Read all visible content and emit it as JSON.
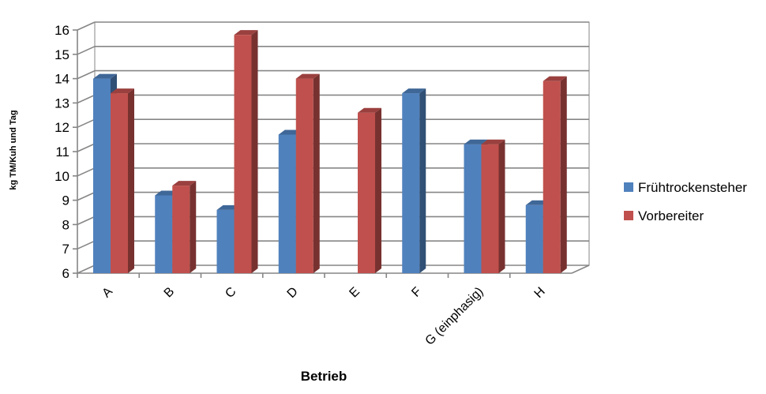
{
  "chart_data": {
    "type": "bar",
    "variant": "3d-clustered-column",
    "categories": [
      "A",
      "B",
      "C",
      "D",
      "E",
      "F",
      "G (einphasig)",
      "H"
    ],
    "series": [
      {
        "name": "Frühtrockensteher",
        "color": "#4F81BD",
        "values": [
          14.0,
          9.2,
          8.6,
          11.7,
          null,
          13.4,
          11.3,
          8.8
        ]
      },
      {
        "name": "Vorbereiter",
        "color": "#C0504D",
        "values": [
          13.4,
          9.6,
          15.8,
          14.0,
          12.6,
          null,
          11.3,
          13.9
        ]
      }
    ],
    "ylabel": "kg TM/Kuh und Tag",
    "xlabel": "Betrieb",
    "ylim": [
      6,
      16
    ],
    "yticks": [
      6,
      7,
      8,
      9,
      10,
      11,
      12,
      13,
      14,
      15,
      16
    ],
    "grid": true,
    "legend_position": "right"
  }
}
